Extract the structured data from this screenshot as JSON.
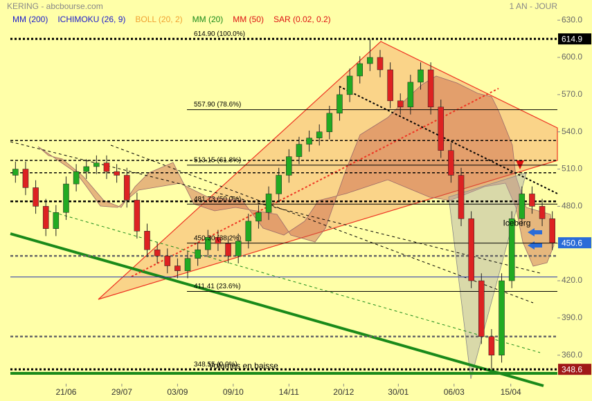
{
  "chart_data": {
    "type": "candlestick",
    "title": "KERING - abcbourse.com",
    "period": "1 AN - JOUR",
    "indicators": [
      {
        "name": "MM (200)",
        "color": "#1a1acc"
      },
      {
        "name": "ICHIMOKU (26, 9)",
        "color": "#1a1acc"
      },
      {
        "name": "BOLL (20, 2)",
        "color": "#f0a030"
      },
      {
        "name": "MM (20)",
        "color": "#1a8a1a"
      },
      {
        "name": "MM (50)",
        "color": "#dd1111"
      },
      {
        "name": "SAR (0.02, 0.2)",
        "color": "#dd1111"
      }
    ],
    "open": [
      505,
      510,
      495,
      480,
      462,
      475,
      498,
      508,
      512,
      515,
      508,
      505,
      485,
      460,
      445,
      440,
      432,
      428,
      438,
      445,
      455,
      450,
      440,
      452,
      468,
      475,
      490,
      505,
      520,
      530,
      535,
      540,
      555,
      570,
      585,
      595,
      600,
      590,
      565,
      560,
      580,
      590,
      560,
      525,
      505,
      470,
      420,
      375,
      360,
      420,
      470,
      490,
      480,
      470
    ],
    "high": [
      516,
      516,
      501,
      486,
      481,
      504,
      514,
      518,
      521,
      521,
      514,
      511,
      491,
      466,
      451,
      446,
      438,
      444,
      451,
      461,
      461,
      456,
      458,
      474,
      481,
      496,
      511,
      526,
      536,
      541,
      546,
      561,
      576,
      591,
      601,
      614.9,
      606,
      596,
      571,
      586,
      596,
      596,
      566,
      531,
      511,
      476,
      426,
      381,
      426,
      476,
      496,
      496,
      486,
      476
    ],
    "low": [
      499,
      489,
      474,
      456,
      456,
      469,
      492,
      502,
      506,
      502,
      499,
      479,
      454,
      439,
      434,
      426,
      422,
      422,
      432,
      439,
      444,
      434,
      434,
      446,
      462,
      469,
      484,
      499,
      514,
      524,
      529,
      534,
      549,
      564,
      579,
      589,
      584,
      559,
      554,
      554,
      574,
      554,
      519,
      499,
      464,
      414,
      369,
      348.6,
      354,
      414,
      464,
      474,
      464,
      444.6
    ],
    "close": [
      510,
      495,
      480,
      462,
      475,
      498,
      508,
      512,
      515,
      508,
      505,
      485,
      460,
      445,
      440,
      432,
      428,
      438,
      445,
      455,
      450,
      440,
      452,
      468,
      475,
      490,
      505,
      520,
      530,
      535,
      540,
      555,
      570,
      585,
      595,
      600,
      590,
      565,
      560,
      580,
      590,
      560,
      525,
      505,
      470,
      420,
      375,
      360,
      420,
      470,
      490,
      480,
      470,
      450.6
    ],
    "up_color": "#22aa22",
    "down_color": "#dd2222",
    "xlim": [
      -0.5,
      53.5
    ],
    "xticks": [
      {
        "value": 5,
        "label": "21/06"
      },
      {
        "value": 10.5,
        "label": "29/07"
      },
      {
        "value": 16,
        "label": "03/09"
      },
      {
        "value": 21.5,
        "label": "09/10"
      },
      {
        "value": 27,
        "label": "14/11"
      },
      {
        "value": 32.4,
        "label": "20/12"
      },
      {
        "value": 37.8,
        "label": "30/01"
      },
      {
        "value": 43.3,
        "label": "06/03"
      },
      {
        "value": 48.9,
        "label": "15/04"
      }
    ],
    "ylim": [
      337,
      634
    ],
    "yticks": [
      {
        "value": 360,
        "label": "360.0"
      },
      {
        "value": 390,
        "label": "390.0"
      },
      {
        "value": 420,
        "label": "420.0"
      },
      {
        "value": 450,
        "label": "450.0"
      },
      {
        "value": 480,
        "label": "480.0"
      },
      {
        "value": 510,
        "label": "510.0"
      },
      {
        "value": 540,
        "label": "540.0"
      },
      {
        "value": 570,
        "label": "570.0"
      },
      {
        "value": 600,
        "label": "600.0"
      },
      {
        "value": 630,
        "label": "630.0"
      }
    ],
    "fibonacci": [
      {
        "value": 614.9,
        "label": "614.90  (100.0%)"
      },
      {
        "value": 557.9,
        "label": "557.90  (78.6%)"
      },
      {
        "value": 513.15,
        "label": "513.15  (61.8%)"
      },
      {
        "value": 481.73,
        "label": "481.73  (50.0%)"
      },
      {
        "value": 450.3,
        "label": "450.30  (38.2%)"
      },
      {
        "value": 411.41,
        "label": "411.41  (23.6%)"
      },
      {
        "value": 348.55,
        "label": "348.55  (0.0%)"
      }
    ],
    "levels": [
      533,
      517,
      507,
      484,
      440,
      375
    ],
    "blue_level": 423,
    "price_labels": [
      {
        "value": 614.9,
        "color": "#000000"
      },
      {
        "value": 450.6,
        "color": "#2a6cd8"
      },
      {
        "value": 348.6,
        "color": "#a01818"
      }
    ],
    "annotations": [
      {
        "text": "Iceberg",
        "x": 49.5,
        "y": 466
      },
      {
        "text": "Volumes en baisse",
        "x": 22.5,
        "y": 351
      }
    ]
  }
}
